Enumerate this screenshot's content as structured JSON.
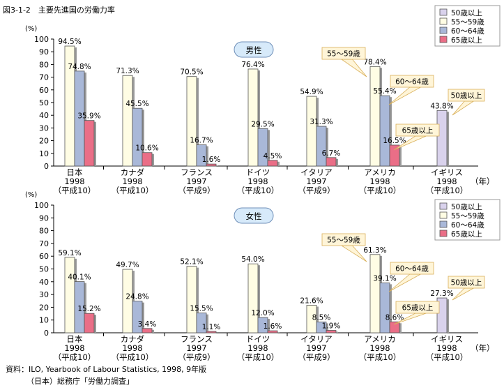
{
  "title": "図3-1-2　主要先進国の労働力率",
  "source": {
    "line1": "資料：ILO, Yearbook of Labour Statistics, 1998, 9年版",
    "line2": "（日本）総務庁「労働力調査」"
  },
  "legend": [
    "50歳以上",
    "55～59歳",
    "60～64歳",
    "65歳以上"
  ],
  "colors": {
    "50+": "#d9d2ec",
    "55-59": "#fffde4",
    "60-64": "#a9b8d8",
    "65+": "#ea6e87",
    "badge": "#d7eafa",
    "callout": "#fff5d8"
  },
  "year_unit": "（年）",
  "chart_data": [
    {
      "type": "bar",
      "title": "男性",
      "ylabel": "(%)",
      "ylim": [
        0,
        100
      ],
      "yticks": [
        0,
        10,
        20,
        30,
        40,
        50,
        60,
        70,
        80,
        90,
        100
      ],
      "categories": [
        {
          "name": "日本",
          "year": "1998",
          "era": "（平成10）"
        },
        {
          "name": "カナダ",
          "year": "1998",
          "era": "（平成10）"
        },
        {
          "name": "フランス",
          "year": "1997",
          "era": "（平成9）"
        },
        {
          "name": "ドイツ",
          "year": "1998",
          "era": "（平成10）"
        },
        {
          "name": "イタリア",
          "year": "1997",
          "era": "（平成9）"
        },
        {
          "name": "アメリカ",
          "year": "1998",
          "era": "（平成10）"
        },
        {
          "name": "イギリス",
          "year": "1998",
          "era": "（平成10）"
        }
      ],
      "series": [
        {
          "name": "50歳以上",
          "values": [
            null,
            null,
            null,
            null,
            null,
            null,
            43.8
          ],
          "labels": [
            null,
            null,
            null,
            null,
            null,
            null,
            "43.8%"
          ]
        },
        {
          "name": "55～59歳",
          "values": [
            94.5,
            71.3,
            70.5,
            76.4,
            54.9,
            78.4,
            null
          ],
          "labels": [
            "94.5%",
            "71.3%",
            "70.5%",
            "76.4%",
            "54.9%",
            "78.4%",
            null
          ]
        },
        {
          "name": "60～64歳",
          "values": [
            74.8,
            45.5,
            16.7,
            29.5,
            31.3,
            55.4,
            null
          ],
          "labels": [
            "74.8%",
            "45.5%",
            "16.7%",
            "29.5%",
            "31.3%",
            "55.4%",
            null
          ]
        },
        {
          "name": "65歳以上",
          "values": [
            35.9,
            10.6,
            1.6,
            4.5,
            6.7,
            16.5,
            null
          ],
          "labels": [
            "35.9%",
            "10.6%",
            "1.6%",
            "4.5%",
            "6.7%",
            "16.5%",
            null
          ]
        }
      ],
      "callouts": [
        "55～59歳",
        "60～64歳",
        "65歳以上",
        "50歳以上"
      ]
    },
    {
      "type": "bar",
      "title": "女性",
      "ylabel": "(%)",
      "ylim": [
        0,
        100
      ],
      "yticks": [
        0,
        10,
        20,
        30,
        40,
        50,
        60,
        70,
        80,
        90,
        100
      ],
      "categories": [
        {
          "name": "日本",
          "year": "1998",
          "era": "（平成10）"
        },
        {
          "name": "カナダ",
          "year": "1998",
          "era": "（平成10）"
        },
        {
          "name": "フランス",
          "year": "1997",
          "era": "（平成9）"
        },
        {
          "name": "ドイツ",
          "year": "1998",
          "era": "（平成10）"
        },
        {
          "name": "イタリア",
          "year": "1997",
          "era": "（平成9）"
        },
        {
          "name": "アメリカ",
          "year": "1998",
          "era": "（平成10）"
        },
        {
          "name": "イギリス",
          "year": "1998",
          "era": "（平成10）"
        }
      ],
      "series": [
        {
          "name": "50歳以上",
          "values": [
            null,
            null,
            null,
            null,
            null,
            null,
            27.3
          ],
          "labels": [
            null,
            null,
            null,
            null,
            null,
            null,
            "27.3%"
          ]
        },
        {
          "name": "55～59歳",
          "values": [
            59.1,
            49.7,
            52.1,
            54.0,
            21.6,
            61.3,
            null
          ],
          "labels": [
            "59.1%",
            "49.7%",
            "52.1%",
            "54.0%",
            "21.6%",
            "61.3%",
            null
          ]
        },
        {
          "name": "60～64歳",
          "values": [
            40.1,
            24.8,
            15.5,
            12.0,
            8.5,
            39.1,
            null
          ],
          "labels": [
            "40.1%",
            "24.8%",
            "15.5%",
            "12.0%",
            "8.5%",
            "39.1%",
            null
          ]
        },
        {
          "name": "65歳以上",
          "values": [
            15.2,
            3.4,
            1.1,
            1.6,
            1.9,
            8.6,
            null
          ],
          "labels": [
            "15.2%",
            "3.4%",
            "1.1%",
            "1.6%",
            "1.9%",
            "8.6%",
            null
          ]
        }
      ],
      "callouts": [
        "55～59歳",
        "60～64歳",
        "65歳以上",
        "50歳以上"
      ]
    }
  ]
}
